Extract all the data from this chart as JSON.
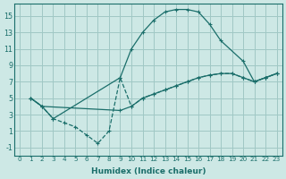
{
  "xlabel": "Humidex (Indice chaleur)",
  "background_color": "#cde8e5",
  "grid_color": "#a0c8c5",
  "line_color": "#1a6e6a",
  "xlim": [
    -0.5,
    23.5
  ],
  "ylim": [
    -2.0,
    16.5
  ],
  "xticks": [
    0,
    1,
    2,
    3,
    4,
    5,
    6,
    7,
    8,
    9,
    10,
    11,
    12,
    13,
    14,
    15,
    16,
    17,
    18,
    19,
    20,
    21,
    22,
    23
  ],
  "yticks": [
    -1,
    1,
    3,
    5,
    7,
    9,
    11,
    13,
    15
  ],
  "line1_x": [
    1,
    2,
    3,
    9,
    10,
    11,
    12,
    13,
    14,
    15,
    16,
    17,
    18,
    20,
    21,
    22,
    23
  ],
  "line1_y": [
    5,
    4,
    2.5,
    7.5,
    11.0,
    13.0,
    14.5,
    15.5,
    15.8,
    15.8,
    15.5,
    14.0,
    12.0,
    9.5,
    7.0,
    7.5,
    8.0
  ],
  "line2_x": [
    1,
    2,
    9,
    10,
    11,
    12,
    13,
    14,
    15,
    16,
    17,
    18,
    19,
    20,
    21,
    22,
    23
  ],
  "line2_y": [
    5.0,
    4.0,
    3.5,
    4.0,
    5.0,
    5.5,
    6.0,
    6.5,
    7.0,
    7.5,
    7.8,
    8.0,
    8.0,
    7.5,
    7.0,
    7.5,
    8.0
  ],
  "line3_x": [
    1,
    2,
    3,
    4,
    5,
    6,
    7,
    8,
    9,
    10,
    11,
    12,
    13,
    14,
    15,
    16,
    17,
    18,
    19,
    20,
    21,
    22,
    23
  ],
  "line3_y": [
    5.0,
    4.0,
    2.5,
    2.0,
    1.5,
    0.5,
    -0.5,
    1.0,
    7.5,
    4.0,
    5.0,
    5.5,
    6.0,
    6.5,
    7.0,
    7.5,
    7.8,
    8.0,
    8.0,
    7.5,
    7.0,
    7.5,
    8.0
  ]
}
